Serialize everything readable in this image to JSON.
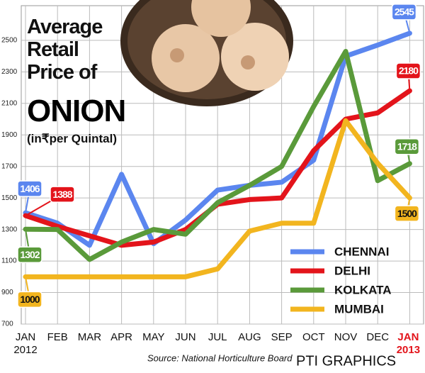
{
  "chart_data": {
    "type": "line",
    "title": "Average Retail Price of",
    "title_emphasis": "ONION",
    "subtitle": "(in₹per Quintal)",
    "source": "Source: National Horticulture Board",
    "credit": "PTI GRAPHICS",
    "categories": [
      "JAN",
      "FEB",
      "MAR",
      "APR",
      "MAY",
      "JUN",
      "JUL",
      "AUG",
      "SEP",
      "OCT",
      "NOV",
      "DEC",
      "JAN"
    ],
    "start_year": "2012",
    "end_year": "2013",
    "ylim": [
      700,
      2720
    ],
    "yticks": [
      700,
      900,
      1100,
      1300,
      1500,
      1700,
      1900,
      2100,
      2300,
      2500
    ],
    "grid": true,
    "legend": "lower right",
    "series": [
      {
        "name": "CHENNAI",
        "color": "#5b86ef",
        "values": [
          1406,
          1340,
          1200,
          1650,
          1210,
          1360,
          1550,
          1580,
          1600,
          1740,
          2400,
          2470,
          2545
        ]
      },
      {
        "name": "DELHI",
        "color": "#e3141b",
        "values": [
          1388,
          1320,
          1260,
          1200,
          1220,
          1300,
          1460,
          1490,
          1500,
          1800,
          2000,
          2040,
          2180
        ]
      },
      {
        "name": "KOLKATA",
        "color": "#5a9a3a",
        "values": [
          1302,
          1300,
          1110,
          1220,
          1300,
          1270,
          1470,
          1580,
          1700,
          2080,
          2430,
          1610,
          1718
        ]
      },
      {
        "name": "MUMBAI",
        "color": "#f2b51f",
        "values": [
          1000,
          1000,
          1000,
          1000,
          1000,
          1000,
          1050,
          1290,
          1340,
          1340,
          1990,
          1720,
          1500
        ]
      }
    ]
  }
}
